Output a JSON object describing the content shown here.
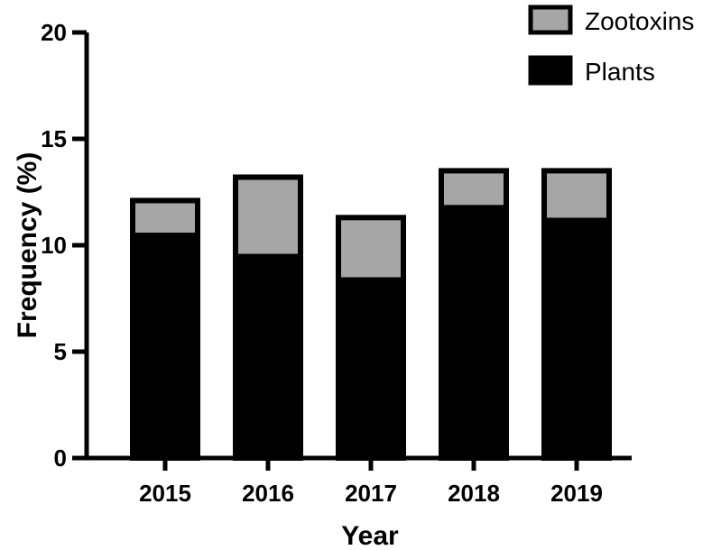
{
  "chart_data": {
    "type": "bar",
    "stacked": true,
    "title": "",
    "xlabel": "Year",
    "ylabel": "Frequency (%)",
    "categories": [
      "2015",
      "2016",
      "2017",
      "2018",
      "2019"
    ],
    "series": [
      {
        "name": "Plants",
        "values": [
          10.6,
          9.6,
          8.5,
          11.9,
          11.3
        ],
        "color": "#000000"
      },
      {
        "name": "Zootoxins",
        "values": [
          1.5,
          3.6,
          2.8,
          1.6,
          2.2
        ],
        "color": "#a6a6a6"
      }
    ],
    "ylim": [
      0,
      20
    ],
    "yticks": [
      "0",
      "5",
      "10",
      "15",
      "20"
    ],
    "legend_position": "top-right",
    "grid": false
  }
}
